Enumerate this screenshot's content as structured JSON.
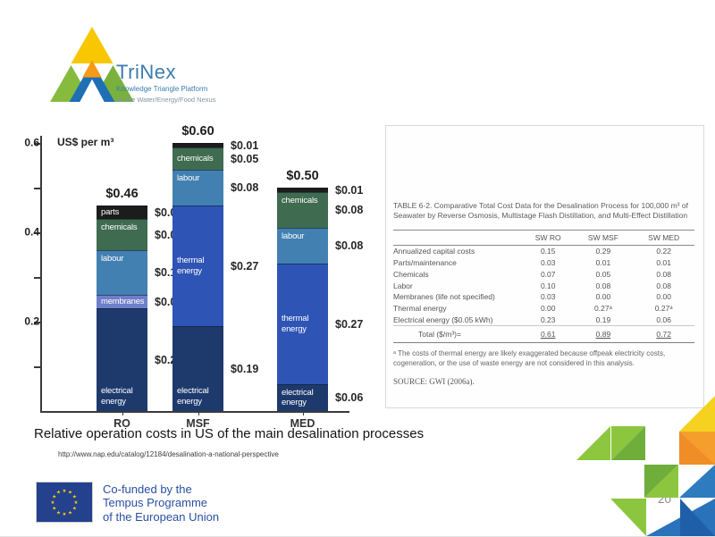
{
  "logo": {
    "name": "TriNex",
    "subtitle": "Knowledge Triangle Platform",
    "tagline": "for the Water/Energy/Food Nexus"
  },
  "chart_data": {
    "type": "bar",
    "stacked": true,
    "title": "Relative operation costs in US of the main desalination processes",
    "unit": "US$ per m³",
    "ylabel": "US$ per m³",
    "ylim": [
      0,
      0.62
    ],
    "yticks": [
      0.1,
      0.2,
      0.3,
      0.4,
      0.5,
      0.6
    ],
    "ytick_labels": {
      "0.2": "0.2",
      "0.4": "0.4",
      "0.6": "0.6"
    },
    "categories": [
      "RO",
      "MSF",
      "MED"
    ],
    "bars": [
      {
        "category": "RO",
        "total": 0.46,
        "total_label": "$0.46",
        "segments": [
          {
            "name": "electrical energy",
            "label": "electrical\nenergy",
            "value": 0.23,
            "value_label": "$0.23",
            "color": "#1e3a6d",
            "label_pos": "bottom"
          },
          {
            "name": "membranes",
            "label": "membranes",
            "value": 0.03,
            "value_label": "$0.03",
            "color": "#6e7fc9",
            "label_pos": "center"
          },
          {
            "name": "labour",
            "label": "labour",
            "value": 0.1,
            "value_label": "$0.10",
            "color": "#4380b2",
            "label_pos": "top"
          },
          {
            "name": "chemicals",
            "label": "chemicals",
            "value": 0.07,
            "value_label": "$0.07",
            "color": "#3f6b50",
            "label_pos": "top"
          },
          {
            "name": "parts",
            "label": "parts",
            "value": 0.03,
            "value_label": "$0.03",
            "color": "#1c1c1c",
            "label_pos": "center"
          }
        ]
      },
      {
        "category": "MSF",
        "total": 0.6,
        "total_label": "$0.60",
        "segments": [
          {
            "name": "electrical energy",
            "label": "electrical\nenergy",
            "value": 0.19,
            "value_label": "$0.19",
            "color": "#1e3a6d",
            "label_pos": "bottom"
          },
          {
            "name": "thermal energy",
            "label": "thermal\nenergy",
            "value": 0.27,
            "value_label": "$0.27",
            "color": "#2e54b5",
            "label_pos": "center"
          },
          {
            "name": "labour",
            "label": "labour",
            "value": 0.08,
            "value_label": "$0.08",
            "color": "#4380b2",
            "label_pos": "top"
          },
          {
            "name": "chemicals",
            "label": "chemicals",
            "value": 0.05,
            "value_label": "$0.05",
            "color": "#3f6b50",
            "label_pos": "center"
          },
          {
            "name": "parts",
            "label": "",
            "value": 0.01,
            "value_label": "$0.01",
            "color": "#1c1c1c",
            "label_pos": "center"
          }
        ]
      },
      {
        "category": "MED",
        "total": 0.5,
        "total_label": "$0.50",
        "segments": [
          {
            "name": "electrical energy",
            "label": "electrical\nenergy",
            "value": 0.06,
            "value_label": "$0.06",
            "color": "#1e3a6d",
            "label_pos": "center"
          },
          {
            "name": "thermal energy",
            "label": "thermal\nenergy",
            "value": 0.27,
            "value_label": "$0.27",
            "color": "#2e54b5",
            "label_pos": "center"
          },
          {
            "name": "labour",
            "label": "labour",
            "value": 0.08,
            "value_label": "$0.08",
            "color": "#4380b2",
            "label_pos": "top"
          },
          {
            "name": "chemicals",
            "label": "chemicals",
            "value": 0.08,
            "value_label": "$0.08",
            "color": "#3f6b50",
            "label_pos": "top"
          },
          {
            "name": "parts",
            "label": "",
            "value": 0.01,
            "value_label": "$0.01",
            "color": "#1c1c1c",
            "label_pos": "center"
          }
        ]
      }
    ]
  },
  "table": {
    "title": "TABLE 6-2. Comparative Total Cost Data for the Desalination Process for 100,000 m³ of Seawater by Reverse Osmosis, Multistage Flash Distillation, and Multi-Effect Distillation",
    "columns": [
      "",
      "SW RO",
      "SW MSF",
      "SW MED"
    ],
    "rows": [
      [
        "Annualized capital costs",
        "0.15",
        "0.29",
        "0.22"
      ],
      [
        "Parts/maintenance",
        "0.03",
        "0.01",
        "0.01"
      ],
      [
        "Chemicals",
        "0.07",
        "0.05",
        "0.08"
      ],
      [
        "Labor",
        "0.10",
        "0.08",
        "0.08"
      ],
      [
        "Membranes (life not specified)",
        "0.03",
        "0.00",
        "0.00"
      ],
      [
        "Thermal energy",
        "0.00",
        "0.27ᵃ",
        "0.27ᵃ"
      ],
      [
        "Electrical energy ($0.05 kWh)",
        "0.23",
        "0.19",
        "0.06"
      ]
    ],
    "total_row": [
      "Total ($/m³)=",
      "0.61",
      "0.89",
      "0.72"
    ],
    "footnote": "ᵃ The costs of thermal energy are likely exaggerated because offpeak electricity costs, cogeneration, or the use of waste energy are not considered in this analysis.",
    "source": "SOURCE: GWI (2006a)."
  },
  "caption": {
    "text": "Relative operation costs in US of the main desalination processes",
    "url": "http://www.nap.edu/catalog/12184/desalination-a-national-perspective"
  },
  "footer": {
    "eu_lines": [
      "Co-funded by the",
      "Tempus Programme",
      "of the European Union"
    ]
  },
  "page_number": "20",
  "colors": {
    "electrical_energy": "#1e3a6d",
    "thermal_energy": "#2e54b5",
    "membranes": "#6e7fc9",
    "labour": "#4380b2",
    "chemicals": "#3f6b50",
    "parts": "#1c1c1c",
    "eu_blue": "#24418e",
    "trinex_blue": "#3a7cae"
  }
}
